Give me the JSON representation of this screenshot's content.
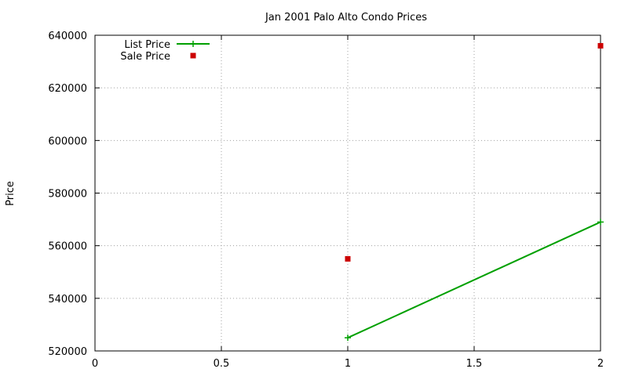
{
  "chart_data": {
    "type": "line",
    "title": "Jan 2001 Palo Alto Condo Prices",
    "xlabel": "",
    "ylabel": "Price",
    "xlim": [
      0,
      2
    ],
    "ylim": [
      520000,
      640000
    ],
    "x_ticks": [
      0,
      0.5,
      1,
      1.5,
      2
    ],
    "y_ticks": [
      520000,
      540000,
      560000,
      580000,
      600000,
      620000,
      640000
    ],
    "x_tick_labels": [
      "0",
      "0.5",
      "1",
      "1.5",
      "2"
    ],
    "y_tick_labels": [
      "520000",
      "540000",
      "560000",
      "580000",
      "600000",
      "620000",
      "640000"
    ],
    "grid": true,
    "legend_position": "top-left",
    "series": [
      {
        "name": "List Price",
        "style": "linespoints",
        "marker": "plus",
        "color": "#00a000",
        "x": [
          1,
          2
        ],
        "y": [
          525000,
          569000
        ]
      },
      {
        "name": "Sale Price",
        "style": "points",
        "marker": "square",
        "color": "#cc0000",
        "x": [
          1,
          2
        ],
        "y": [
          555000,
          636000
        ]
      }
    ]
  }
}
